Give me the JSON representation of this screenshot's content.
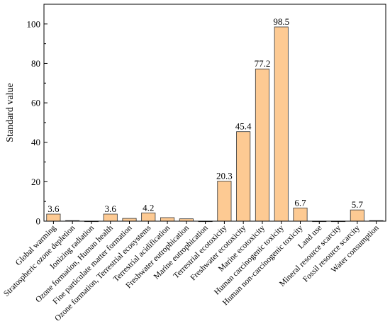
{
  "chart_data": {
    "type": "bar",
    "categories": [
      "Global warming",
      "Stratospheric ozone depletion",
      "Ionizing radiation",
      "Ozone formation, Human health",
      "Fine particulate matter formation",
      "Ozone formation, Terrestrial ecosystems",
      "Terrestrial acidification",
      "Freshwater eutrophication",
      "Marine eutrophication",
      "Terrestrial ecotoxicity",
      "Freshwater ecotoxicity",
      "Marine ecotoxicity",
      "Human carcinogenic toxicity",
      "Human non-carcinogenic toxicity",
      "Land use",
      "Mineral resource scarcity",
      "Fossil resource scarcity",
      "Water consumption"
    ],
    "values": [
      3.6,
      0.3,
      0.05,
      3.6,
      1.4,
      4.2,
      1.8,
      1.2,
      0.05,
      20.3,
      45.4,
      77.2,
      98.5,
      6.7,
      0.05,
      0.05,
      5.7,
      0.3
    ],
    "data_labels": [
      "3.6",
      "",
      "",
      "3.6",
      "",
      "4.2",
      "",
      "",
      "",
      "20.3",
      "45.4",
      "77.2",
      "98.5",
      "6.7",
      "",
      "",
      "5.7",
      ""
    ],
    "title": "",
    "xlabel": "",
    "ylabel": "Standard value",
    "ylim": [
      0,
      110
    ],
    "yticks": [
      "0",
      "20",
      "40",
      "60",
      "80",
      "100"
    ],
    "bar_color": "#fdca93",
    "bar_edge_color": "#333333",
    "grid": false
  }
}
